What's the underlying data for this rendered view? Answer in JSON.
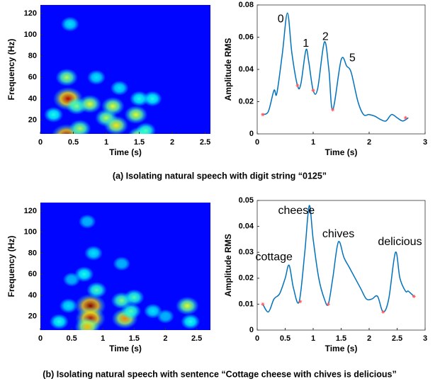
{
  "captions": [
    "(a) Isolating natural speech with digit string “0125”",
    "(b) Isolating natural speech with sentence “Cottage cheese with chives is delicious”"
  ],
  "chart_data": [
    {
      "type": "heatmap",
      "x_label": "Time (s)",
      "y_label": "Frequency (Hz)",
      "xlim": [
        0,
        2.58
      ],
      "ylim": [
        7,
        128
      ],
      "xticks": [
        0,
        0.5,
        1,
        1.5,
        2,
        2.5
      ],
      "yticks": [
        20,
        40,
        60,
        80,
        100,
        120
      ],
      "spots": {
        "x": [
          0.4,
          0.42,
          0.4,
          0.55,
          0.75,
          1.0,
          1.1,
          1.15,
          1.45,
          1.5,
          1.5,
          0.6,
          0.2,
          1.7,
          0.85,
          0.45,
          1.2,
          1.6
        ],
        "y": [
          5,
          40,
          60,
          33,
          35,
          22,
          33,
          15,
          25,
          5,
          40,
          12,
          25,
          40,
          60,
          110,
          50,
          10
        ],
        "values": [
          1.0,
          0.95,
          0.55,
          0.5,
          0.6,
          0.55,
          0.6,
          0.65,
          0.6,
          0.6,
          0.4,
          0.55,
          0.4,
          0.4,
          0.35,
          0.35,
          0.35,
          0.45
        ]
      }
    },
    {
      "type": "line",
      "x_label": "Time (s)",
      "y_label": "Amplitude RMS",
      "color": "#0072bd",
      "marker_color": "#ff5a5a",
      "xlim": [
        0,
        3
      ],
      "ylim": [
        0,
        0.08
      ],
      "xticks": [
        0,
        1,
        2,
        3
      ],
      "yticks": [
        0,
        0.02,
        0.04,
        0.06,
        0.08
      ],
      "x": [
        0.1,
        0.2,
        0.3,
        0.35,
        0.45,
        0.54,
        0.62,
        0.72,
        0.78,
        0.87,
        0.92,
        1.0,
        1.08,
        1.2,
        1.28,
        1.35,
        1.5,
        1.6,
        1.68,
        1.8,
        1.9,
        2.0,
        2.1,
        2.2,
        2.3,
        2.4,
        2.5,
        2.6,
        2.7
      ],
      "values": [
        0.012,
        0.014,
        0.027,
        0.025,
        0.05,
        0.075,
        0.05,
        0.03,
        0.031,
        0.052,
        0.045,
        0.027,
        0.028,
        0.057,
        0.04,
        0.015,
        0.046,
        0.042,
        0.038,
        0.02,
        0.012,
        0.012,
        0.011,
        0.009,
        0.008,
        0.012,
        0.01,
        0.008,
        0.01
      ],
      "minima": {
        "x": [
          0.1,
          0.72,
          1.0,
          1.35,
          2.65
        ],
        "values": [
          0.012,
          0.03,
          0.027,
          0.015,
          0.01
        ]
      },
      "annotations": [
        {
          "text": "0",
          "x": 0.42,
          "y": 0.071
        },
        {
          "text": "1",
          "x": 0.87,
          "y": 0.056
        },
        {
          "text": "2",
          "x": 1.22,
          "y": 0.06
        },
        {
          "text": "5",
          "x": 1.7,
          "y": 0.047
        }
      ]
    },
    {
      "type": "heatmap",
      "x_label": "Time (s)",
      "y_label": "Frequency (Hz)",
      "xlim": [
        0,
        2.72
      ],
      "ylim": [
        7,
        128
      ],
      "xticks": [
        0,
        0.5,
        1,
        1.5,
        2,
        2.5
      ],
      "yticks": [
        20,
        40,
        60,
        80,
        100,
        120
      ],
      "spots": {
        "x": [
          0.8,
          0.8,
          0.75,
          0.9,
          0.7,
          0.85,
          1.35,
          1.3,
          1.5,
          1.45,
          0.45,
          0.3,
          2.35,
          2.4,
          1.8,
          0.75,
          1.3,
          2.0,
          0.5
        ],
        "y": [
          30,
          18,
          10,
          45,
          60,
          80,
          18,
          35,
          38,
          25,
          30,
          15,
          30,
          15,
          25,
          110,
          70,
          20,
          55
        ],
        "values": [
          1.0,
          0.95,
          0.7,
          0.45,
          0.4,
          0.35,
          0.75,
          0.5,
          0.45,
          0.45,
          0.35,
          0.4,
          0.6,
          0.4,
          0.35,
          0.3,
          0.3,
          0.3,
          0.3
        ]
      }
    },
    {
      "type": "line",
      "x_label": "Time (s)",
      "y_label": "Amplitude RMS",
      "color": "#0072bd",
      "marker_color": "#ff5a5a",
      "xlim": [
        0,
        3
      ],
      "ylim": [
        0,
        0.05
      ],
      "xticks": [
        0,
        0.5,
        1,
        1.5,
        2,
        2.5,
        3
      ],
      "yticks": [
        0,
        0.01,
        0.02,
        0.03,
        0.04,
        0.05
      ],
      "x": [
        0.1,
        0.2,
        0.3,
        0.4,
        0.5,
        0.57,
        0.65,
        0.75,
        0.85,
        0.93,
        1.0,
        1.1,
        1.2,
        1.27,
        1.35,
        1.45,
        1.55,
        1.65,
        1.75,
        1.85,
        1.95,
        2.05,
        2.15,
        2.25,
        2.35,
        2.47,
        2.55,
        2.65,
        2.7,
        2.8
      ],
      "values": [
        0.01,
        0.007,
        0.012,
        0.014,
        0.02,
        0.025,
        0.016,
        0.011,
        0.03,
        0.048,
        0.035,
        0.02,
        0.012,
        0.01,
        0.02,
        0.034,
        0.028,
        0.024,
        0.02,
        0.016,
        0.012,
        0.012,
        0.013,
        0.007,
        0.012,
        0.03,
        0.02,
        0.015,
        0.015,
        0.013
      ],
      "minima": {
        "x": [
          0.1,
          0.77,
          1.27,
          2.25,
          2.8
        ],
        "values": [
          0.01,
          0.011,
          0.01,
          0.007,
          0.013
        ]
      },
      "annotations": [
        {
          "text": "cottage",
          "x": 0.3,
          "y": 0.028
        },
        {
          "text": "cheese",
          "x": 0.7,
          "y": 0.046
        },
        {
          "text": "chives",
          "x": 1.45,
          "y": 0.037
        },
        {
          "text": "delicious",
          "x": 2.55,
          "y": 0.034
        }
      ]
    }
  ]
}
